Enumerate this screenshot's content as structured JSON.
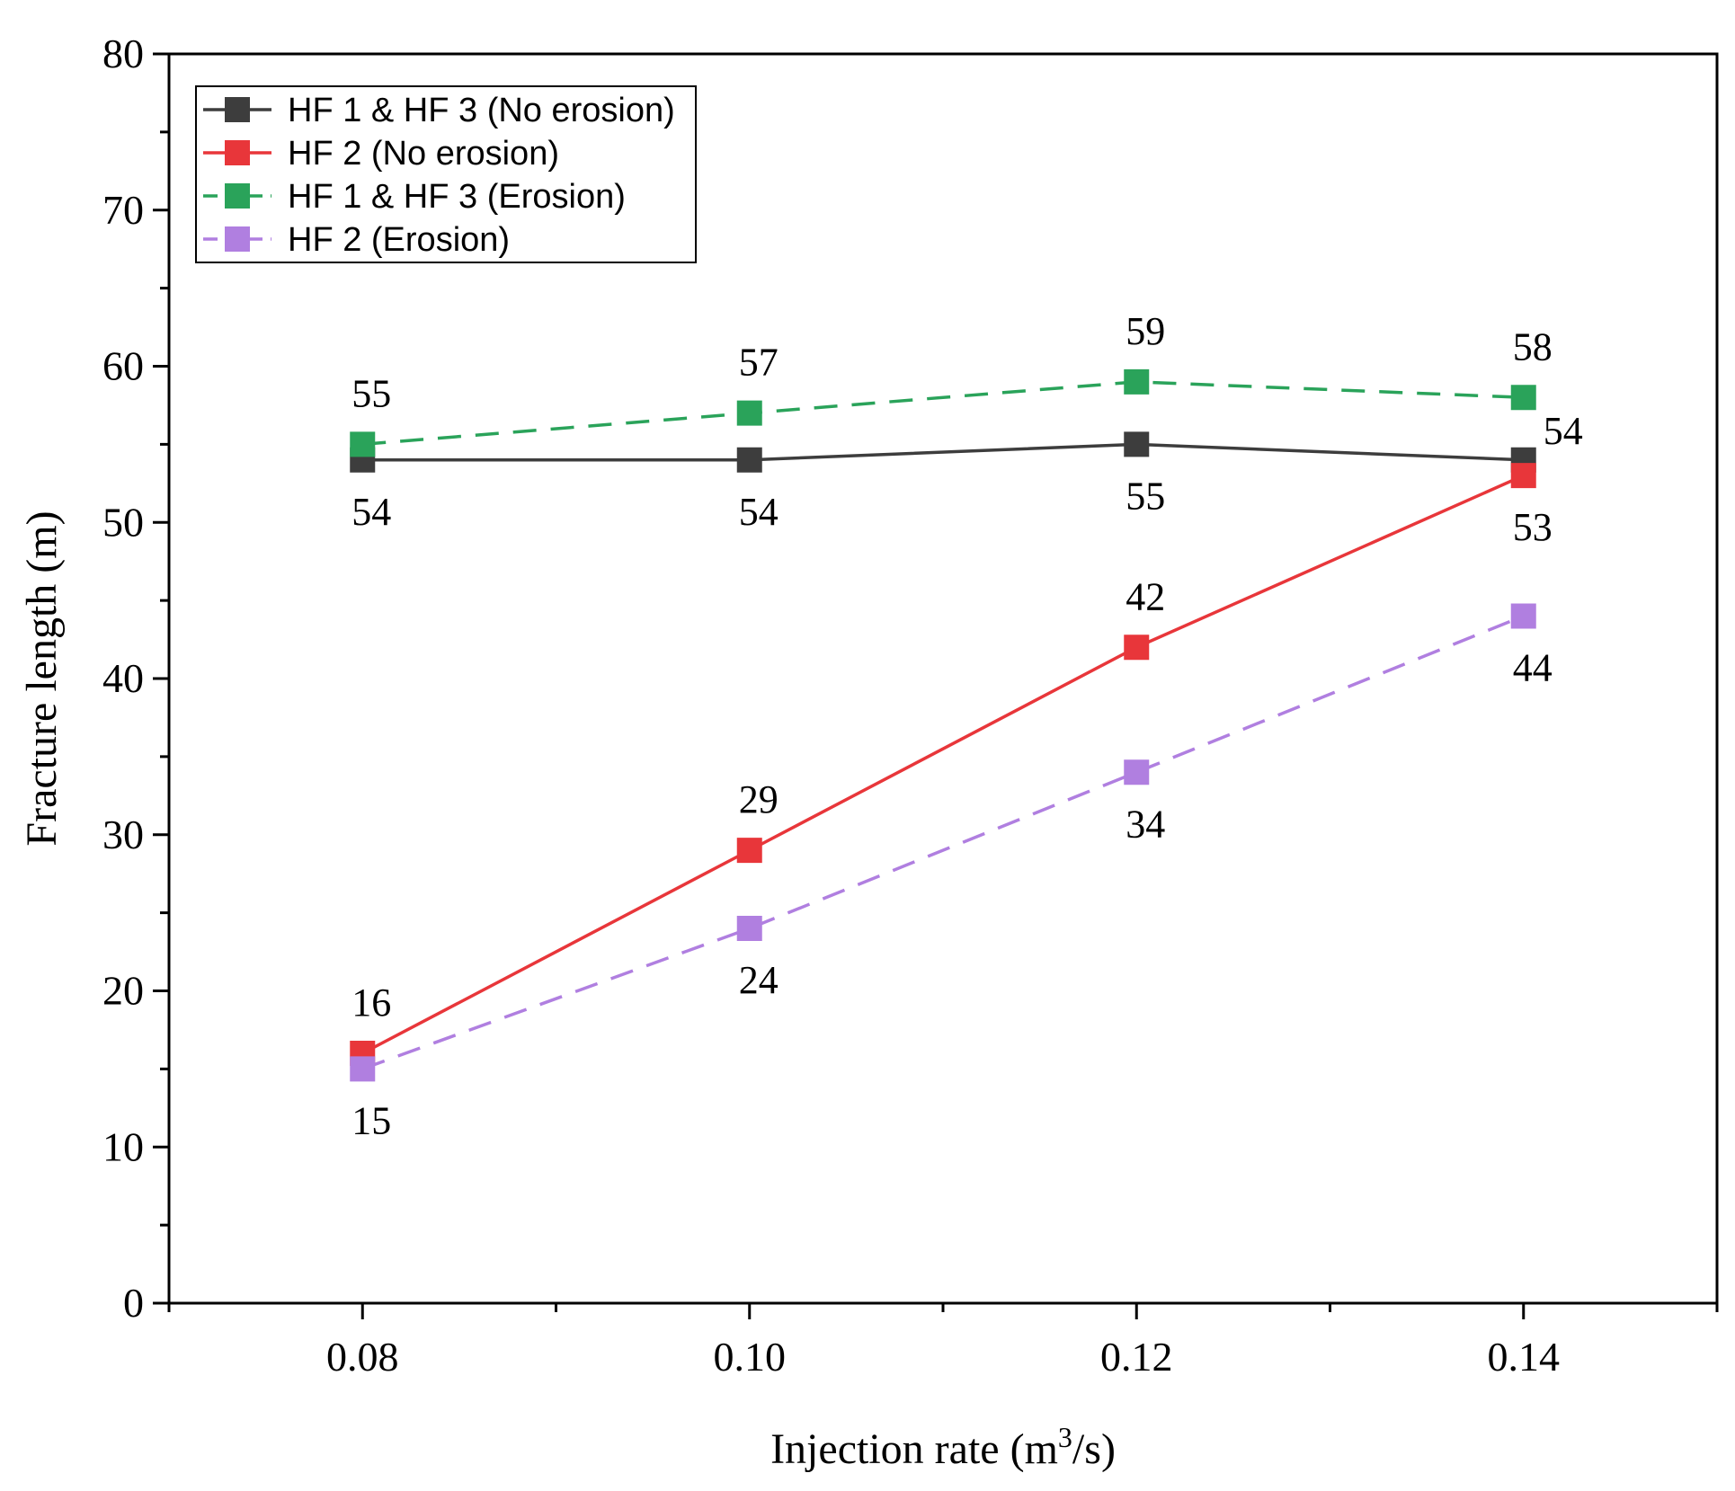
{
  "chart_data": {
    "type": "line",
    "title": "",
    "xlabel_parts": [
      "Injection rate (m",
      "3",
      "/s)"
    ],
    "ylabel": "Fracture length (m)",
    "x": [
      0.08,
      0.1,
      0.12,
      0.14
    ],
    "x_tick_labels": [
      "0.08",
      "0.10",
      "0.12",
      "0.14"
    ],
    "xlim": [
      0.07,
      0.15
    ],
    "ylim": [
      0,
      80
    ],
    "y_ticks": [
      0,
      10,
      20,
      30,
      40,
      50,
      60,
      70,
      80
    ],
    "y_tick_labels": [
      "0",
      "10",
      "20",
      "30",
      "40",
      "50",
      "60",
      "70",
      "80"
    ],
    "grid": false,
    "legend_position": "top-left",
    "series": [
      {
        "name": "HF 1 & HF 3 (No erosion)",
        "color": "#3d3d3d",
        "dash": "solid",
        "values": [
          54,
          54,
          55,
          54
        ],
        "labels": [
          "54",
          "54",
          "55",
          "54"
        ],
        "label_side": [
          "below",
          "below",
          "below",
          "right"
        ]
      },
      {
        "name": "HF 2 (No erosion)",
        "color": "#e8363a",
        "dash": "solid",
        "values": [
          16,
          29,
          42,
          53
        ],
        "labels": [
          "16",
          "29",
          "42",
          "53"
        ],
        "label_side": [
          "above",
          "above",
          "above",
          "below"
        ]
      },
      {
        "name": "HF 1 & HF 3 (Erosion)",
        "color": "#2aa35a",
        "dash": "dashed",
        "values": [
          55,
          57,
          59,
          58
        ],
        "labels": [
          "55",
          "57",
          "59",
          "58"
        ],
        "label_side": [
          "above",
          "above",
          "above",
          "above"
        ]
      },
      {
        "name": "HF 2 (Erosion)",
        "color": "#b07fe0",
        "dash": "dashed",
        "values": [
          15,
          24,
          34,
          44
        ],
        "labels": [
          "15",
          "24",
          "34",
          "44"
        ],
        "label_side": [
          "below",
          "below",
          "below",
          "below"
        ]
      }
    ]
  }
}
